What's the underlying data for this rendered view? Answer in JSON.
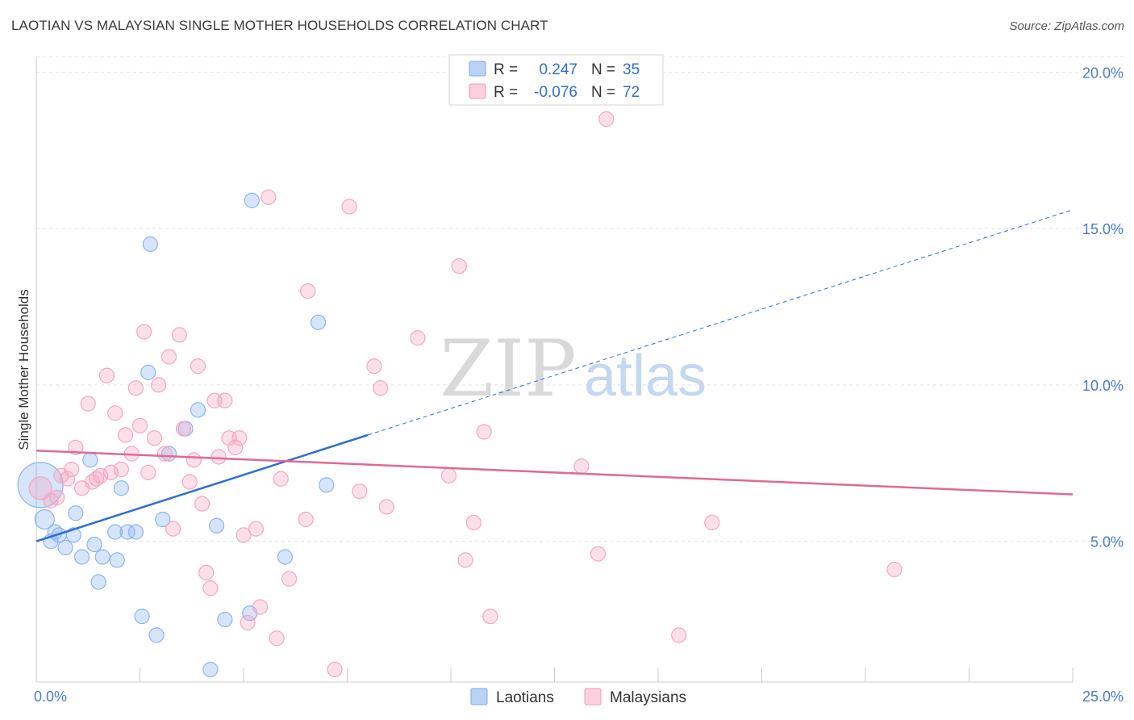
{
  "title": "LAOTIAN VS MALAYSIAN SINGLE MOTHER HOUSEHOLDS CORRELATION CHART",
  "source": "Source: ZipAtlas.com",
  "watermark": {
    "zip": "ZIP",
    "atlas": "atlas"
  },
  "chart_data": {
    "type": "scatter",
    "xlabel": "",
    "ylabel": "Single Mother Households",
    "xlim": [
      0,
      25
    ],
    "ylim": [
      0.5,
      20.5
    ],
    "x_tick_labels": {
      "left": "0.0%",
      "right": "25.0%"
    },
    "y_ticks": [
      {
        "value": 5,
        "label": "5.0%"
      },
      {
        "value": 10,
        "label": "10.0%"
      },
      {
        "value": 15,
        "label": "15.0%"
      },
      {
        "value": 20,
        "label": "20.0%"
      }
    ],
    "grid": true,
    "legend_position": "top-center",
    "series": [
      {
        "name": "Laotians",
        "color": "#8ab4f0",
        "line_color": "#2f6fd0",
        "R_label": "R =",
        "R": "0.247",
        "N_label": "N =",
        "N": "35",
        "trend": {
          "x0": 0,
          "y0": 5.0,
          "x1": 8.0,
          "y1": 8.4,
          "dash_to_x": 25,
          "dash_to_y": 15.6
        },
        "points": [
          [
            0.1,
            6.8,
            28
          ],
          [
            0.2,
            5.7,
            12
          ],
          [
            0.35,
            5.0,
            9
          ],
          [
            0.45,
            5.3,
            9
          ],
          [
            0.55,
            5.2,
            9
          ],
          [
            0.7,
            4.8,
            9
          ],
          [
            0.9,
            5.2,
            9
          ],
          [
            0.95,
            5.9,
            9
          ],
          [
            1.1,
            4.5,
            9
          ],
          [
            1.3,
            7.6,
            9
          ],
          [
            1.4,
            4.9,
            9
          ],
          [
            1.5,
            3.7,
            9
          ],
          [
            1.6,
            4.5,
            9
          ],
          [
            1.9,
            5.3,
            9
          ],
          [
            1.95,
            4.4,
            9
          ],
          [
            2.05,
            6.7,
            9
          ],
          [
            2.2,
            5.3,
            9
          ],
          [
            2.4,
            5.3,
            9
          ],
          [
            2.55,
            2.6,
            9
          ],
          [
            2.7,
            10.4,
            9
          ],
          [
            2.75,
            14.5,
            9
          ],
          [
            2.9,
            2.0,
            9
          ],
          [
            3.05,
            5.7,
            9
          ],
          [
            3.2,
            7.8,
            9
          ],
          [
            3.6,
            8.6,
            9
          ],
          [
            3.9,
            9.2,
            9
          ],
          [
            4.2,
            0.9,
            9
          ],
          [
            4.35,
            5.5,
            9
          ],
          [
            4.55,
            2.5,
            9
          ],
          [
            5.15,
            2.7,
            9
          ],
          [
            5.2,
            15.9,
            9
          ],
          [
            6.0,
            4.5,
            9
          ],
          [
            6.8,
            12.0,
            9
          ],
          [
            7.0,
            6.8,
            9
          ],
          [
            5.4,
            5.0,
            0
          ]
        ]
      },
      {
        "name": "Malaysians",
        "color": "#f4a6bf",
        "line_color": "#e06a93",
        "R_label": "R =",
        "R": "-0.076",
        "N_label": "N =",
        "N": "72",
        "trend": {
          "x0": 0,
          "y0": 7.9,
          "x1": 25,
          "y1": 6.5
        },
        "points": [
          [
            0.1,
            6.7,
            14
          ],
          [
            0.35,
            6.3,
            9
          ],
          [
            0.5,
            6.4,
            9
          ],
          [
            0.6,
            7.1,
            9
          ],
          [
            0.75,
            7.0,
            9
          ],
          [
            0.85,
            7.3,
            9
          ],
          [
            0.95,
            8.0,
            9
          ],
          [
            1.1,
            6.7,
            9
          ],
          [
            1.25,
            9.4,
            9
          ],
          [
            1.35,
            6.9,
            9
          ],
          [
            1.45,
            7.0,
            9
          ],
          [
            1.55,
            7.1,
            9
          ],
          [
            1.7,
            10.3,
            9
          ],
          [
            1.8,
            7.2,
            9
          ],
          [
            1.9,
            9.1,
            9
          ],
          [
            2.05,
            7.3,
            9
          ],
          [
            2.15,
            8.4,
            9
          ],
          [
            2.3,
            7.8,
            9
          ],
          [
            2.4,
            9.9,
            9
          ],
          [
            2.5,
            8.7,
            9
          ],
          [
            2.6,
            11.7,
            9
          ],
          [
            2.7,
            7.2,
            9
          ],
          [
            2.85,
            8.3,
            9
          ],
          [
            2.95,
            10.0,
            9
          ],
          [
            3.1,
            7.8,
            9
          ],
          [
            3.2,
            10.9,
            9
          ],
          [
            3.3,
            5.4,
            9
          ],
          [
            3.45,
            11.6,
            9
          ],
          [
            3.55,
            8.6,
            9
          ],
          [
            3.7,
            6.9,
            9
          ],
          [
            3.8,
            7.6,
            9
          ],
          [
            3.9,
            10.6,
            9
          ],
          [
            4.0,
            6.2,
            9
          ],
          [
            4.1,
            4.0,
            9
          ],
          [
            4.2,
            3.5,
            9
          ],
          [
            4.3,
            9.5,
            9
          ],
          [
            4.4,
            7.7,
            9
          ],
          [
            4.55,
            9.5,
            9
          ],
          [
            4.65,
            8.3,
            9
          ],
          [
            4.8,
            8.0,
            9
          ],
          [
            4.9,
            8.3,
            9
          ],
          [
            5.0,
            5.2,
            9
          ],
          [
            5.1,
            2.4,
            9
          ],
          [
            5.3,
            5.4,
            9
          ],
          [
            5.4,
            2.9,
            9
          ],
          [
            5.6,
            16.0,
            9
          ],
          [
            5.8,
            1.9,
            9
          ],
          [
            5.9,
            7.0,
            9
          ],
          [
            6.1,
            3.8,
            9
          ],
          [
            6.5,
            5.7,
            9
          ],
          [
            6.55,
            13.0,
            9
          ],
          [
            7.2,
            0.9,
            9
          ],
          [
            7.55,
            15.7,
            9
          ],
          [
            7.8,
            6.6,
            9
          ],
          [
            8.15,
            10.6,
            9
          ],
          [
            8.3,
            9.9,
            9
          ],
          [
            8.45,
            6.1,
            9
          ],
          [
            9.2,
            11.5,
            9
          ],
          [
            9.95,
            7.1,
            9
          ],
          [
            10.2,
            13.8,
            9
          ],
          [
            10.35,
            4.4,
            9
          ],
          [
            10.55,
            5.6,
            9
          ],
          [
            10.8,
            8.5,
            9
          ],
          [
            10.95,
            2.6,
            9
          ],
          [
            13.15,
            7.4,
            9
          ],
          [
            13.55,
            4.6,
            9
          ],
          [
            13.75,
            18.5,
            9
          ],
          [
            15.5,
            2.0,
            9
          ],
          [
            16.3,
            5.6,
            9
          ],
          [
            20.7,
            4.1,
            9
          ],
          [
            4.7,
            8.4,
            0
          ],
          [
            3.35,
            7.7,
            0
          ]
        ]
      }
    ]
  }
}
